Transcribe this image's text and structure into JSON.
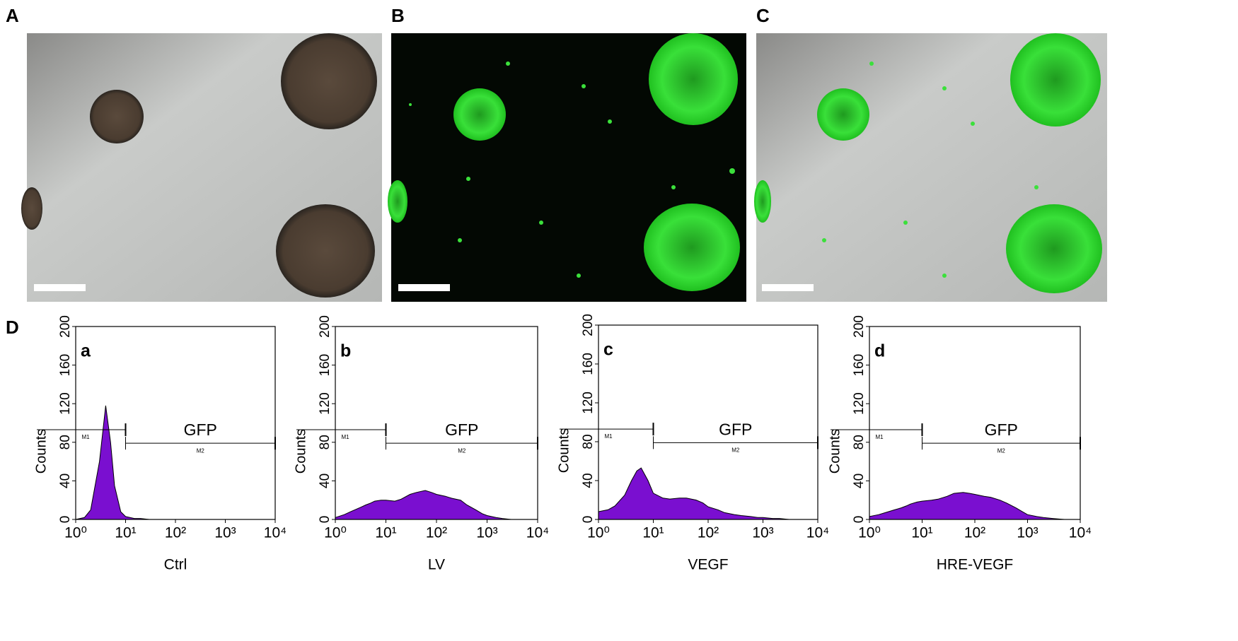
{
  "panels": [
    "A",
    "B",
    "C",
    "D"
  ],
  "chart_data": [
    {
      "type": "area",
      "panel": "a",
      "xlabel": "Ctrl",
      "ylabel": "Counts",
      "annotation": "GFP",
      "color": "#7a0fd0",
      "xscale": "log",
      "xlim": [
        1,
        10000
      ],
      "ylim": [
        0,
        200
      ],
      "xticks": [
        {
          "value": 1,
          "label": "10⁰"
        },
        {
          "value": 10,
          "label": "10¹"
        },
        {
          "value": 100,
          "label": "10²"
        },
        {
          "value": 1000,
          "label": "10³"
        },
        {
          "value": 10000,
          "label": "10⁴"
        }
      ],
      "yticks": [
        0,
        40,
        80,
        120,
        160,
        200
      ],
      "gates": [
        {
          "name": "M1",
          "range": [
            1,
            10
          ],
          "y": 93
        },
        {
          "name": "M2",
          "range": [
            10,
            10000
          ],
          "y": 79
        }
      ],
      "x": [
        1,
        1.5,
        2,
        3,
        4,
        5,
        6,
        8,
        10,
        15,
        20,
        30,
        40,
        60,
        80,
        100,
        150,
        200,
        300,
        400,
        600,
        800,
        1000,
        1500,
        2000,
        3000,
        5000,
        10000
      ],
      "values": [
        0,
        2,
        10,
        60,
        118,
        80,
        35,
        8,
        3,
        1,
        1,
        0,
        0,
        0,
        0,
        0,
        0,
        0,
        0,
        0,
        0,
        0,
        0,
        0,
        0,
        0,
        0,
        0
      ]
    },
    {
      "type": "area",
      "panel": "b",
      "xlabel": "LV",
      "ylabel": "Counts",
      "annotation": "GFP",
      "color": "#7a0fd0",
      "xscale": "log",
      "xlim": [
        1,
        10000
      ],
      "ylim": [
        0,
        200
      ],
      "xticks": [
        {
          "value": 1,
          "label": "10⁰"
        },
        {
          "value": 10,
          "label": "10¹"
        },
        {
          "value": 100,
          "label": "10²"
        },
        {
          "value": 1000,
          "label": "10³"
        },
        {
          "value": 10000,
          "label": "10⁴"
        }
      ],
      "yticks": [
        0,
        40,
        80,
        120,
        160,
        200
      ],
      "gates": [
        {
          "name": "M1",
          "range": [
            1,
            10
          ],
          "y": 93
        },
        {
          "name": "M2",
          "range": [
            10,
            10000
          ],
          "y": 79
        }
      ],
      "x": [
        1,
        1.5,
        2,
        3,
        4,
        5,
        6,
        8,
        10,
        15,
        20,
        30,
        40,
        60,
        80,
        100,
        150,
        200,
        300,
        400,
        600,
        800,
        1000,
        1500,
        2000,
        3000,
        5000,
        10000
      ],
      "values": [
        2,
        5,
        8,
        12,
        15,
        17,
        19,
        20,
        20,
        19,
        21,
        26,
        28,
        30,
        28,
        26,
        24,
        22,
        20,
        15,
        10,
        6,
        4,
        2,
        1,
        0,
        0,
        0
      ]
    },
    {
      "type": "area",
      "panel": "c",
      "xlabel": "VEGF",
      "ylabel": "Counts",
      "annotation": "GFP",
      "color": "#7a0fd0",
      "xscale": "log",
      "xlim": [
        1,
        10000
      ],
      "ylim": [
        0,
        200
      ],
      "xticks": [
        {
          "value": 1,
          "label": "10⁰"
        },
        {
          "value": 10,
          "label": "10¹"
        },
        {
          "value": 100,
          "label": "10²"
        },
        {
          "value": 1000,
          "label": "10³"
        },
        {
          "value": 10000,
          "label": "10⁴"
        }
      ],
      "yticks": [
        0,
        40,
        80,
        120,
        160,
        200
      ],
      "gates": [
        {
          "name": "M1",
          "range": [
            1,
            10
          ],
          "y": 93
        },
        {
          "name": "M2",
          "range": [
            10,
            10000
          ],
          "y": 79
        }
      ],
      "x": [
        1,
        1.5,
        2,
        3,
        4,
        5,
        6,
        8,
        10,
        15,
        20,
        30,
        40,
        60,
        80,
        100,
        150,
        200,
        300,
        400,
        600,
        800,
        1000,
        1500,
        2000,
        3000,
        5000,
        10000
      ],
      "values": [
        8,
        10,
        14,
        25,
        40,
        50,
        53,
        40,
        27,
        22,
        21,
        22,
        22,
        20,
        17,
        13,
        10,
        7,
        5,
        4,
        3,
        2,
        2,
        1,
        1,
        0,
        0,
        0
      ]
    },
    {
      "type": "area",
      "panel": "d",
      "xlabel": "HRE-VEGF",
      "ylabel": "Counts",
      "annotation": "GFP",
      "color": "#7a0fd0",
      "xscale": "log",
      "xlim": [
        1,
        10000
      ],
      "ylim": [
        0,
        200
      ],
      "xticks": [
        {
          "value": 1,
          "label": "10⁰"
        },
        {
          "value": 10,
          "label": "10¹"
        },
        {
          "value": 100,
          "label": "10²"
        },
        {
          "value": 1000,
          "label": "10³"
        },
        {
          "value": 10000,
          "label": "10⁴"
        }
      ],
      "yticks": [
        0,
        40,
        80,
        120,
        160,
        200
      ],
      "gates": [
        {
          "name": "M1",
          "range": [
            1,
            10
          ],
          "y": 93
        },
        {
          "name": "M2",
          "range": [
            10,
            10000
          ],
          "y": 79
        }
      ],
      "x": [
        1,
        1.5,
        2,
        3,
        4,
        5,
        6,
        8,
        10,
        15,
        20,
        30,
        40,
        60,
        80,
        100,
        150,
        200,
        300,
        400,
        600,
        800,
        1000,
        1500,
        2000,
        3000,
        5000,
        10000
      ],
      "values": [
        3,
        5,
        7,
        10,
        12,
        14,
        16,
        18,
        19,
        20,
        21,
        24,
        27,
        28,
        27,
        26,
        24,
        23,
        20,
        17,
        12,
        8,
        5,
        3,
        2,
        1,
        0,
        0
      ]
    }
  ]
}
